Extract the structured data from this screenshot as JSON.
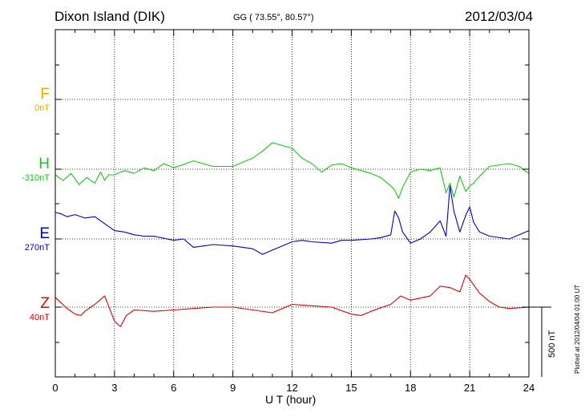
{
  "header": {
    "station": "Dixon Island (DIK)",
    "coords": "GG ( 73.55°,  80.57°)",
    "date": "2012/03/04"
  },
  "footer": {
    "plotted": "Plotted at 2012/04/04 01:00 UT",
    "scale_label": "500 nT"
  },
  "components": [
    {
      "letter": "F",
      "base": "0nT",
      "color": "#f5a800"
    },
    {
      "letter": "H",
      "base": "-310nT",
      "color": "#18c818"
    },
    {
      "letter": "E",
      "base": "270nT",
      "color": "#0000cc"
    },
    {
      "letter": "Z",
      "base": "40nT",
      "color": "#dd0000"
    }
  ],
  "chart_data": {
    "type": "line",
    "xlabel": "U T (hour)",
    "xlim": [
      0,
      24
    ],
    "xticks": [
      "0",
      "3",
      "6",
      "9",
      "12",
      "15",
      "18",
      "21",
      "24"
    ],
    "scale_bar_nT": 500,
    "series": [
      {
        "name": "H",
        "color": "#18c818",
        "baseline_nT": -310,
        "points": [
          [
            0,
            -40
          ],
          [
            0.4,
            -80
          ],
          [
            0.8,
            -30
          ],
          [
            1.2,
            -110
          ],
          [
            1.6,
            -60
          ],
          [
            2,
            -100
          ],
          [
            2.3,
            -20
          ],
          [
            2.5,
            -80
          ],
          [
            2.7,
            -40
          ],
          [
            3,
            -40
          ],
          [
            3.5,
            -10
          ],
          [
            4,
            -30
          ],
          [
            4.5,
            10
          ],
          [
            5,
            -10
          ],
          [
            5.5,
            40
          ],
          [
            6,
            10
          ],
          [
            7,
            60
          ],
          [
            8,
            20
          ],
          [
            9,
            20
          ],
          [
            9.5,
            50
          ],
          [
            10,
            80
          ],
          [
            10.5,
            130
          ],
          [
            11,
            190
          ],
          [
            11.5,
            170
          ],
          [
            12,
            150
          ],
          [
            12.5,
            80
          ],
          [
            13,
            40
          ],
          [
            13.5,
            -20
          ],
          [
            14,
            30
          ],
          [
            14.5,
            40
          ],
          [
            15,
            10
          ],
          [
            15.5,
            -10
          ],
          [
            16,
            -30
          ],
          [
            16.5,
            -60
          ],
          [
            17,
            -120
          ],
          [
            17.2,
            -150
          ],
          [
            17.4,
            -210
          ],
          [
            17.6,
            -130
          ],
          [
            18,
            -20
          ],
          [
            18.5,
            0
          ],
          [
            19,
            -10
          ],
          [
            19.5,
            10
          ],
          [
            19.8,
            -170
          ],
          [
            20,
            -100
          ],
          [
            20.2,
            -200
          ],
          [
            20.5,
            -50
          ],
          [
            20.8,
            -160
          ],
          [
            21,
            -120
          ],
          [
            21.2,
            -100
          ],
          [
            21.5,
            -50
          ],
          [
            22,
            20
          ],
          [
            23,
            40
          ],
          [
            23.5,
            20
          ],
          [
            24,
            -30
          ]
        ]
      },
      {
        "name": "E",
        "color": "#0000cc",
        "baseline_nT": 270,
        "points": [
          [
            0,
            190
          ],
          [
            0.3,
            180
          ],
          [
            0.6,
            160
          ],
          [
            1,
            175
          ],
          [
            1.5,
            150
          ],
          [
            2,
            160
          ],
          [
            2.5,
            110
          ],
          [
            3,
            60
          ],
          [
            3.5,
            50
          ],
          [
            4,
            30
          ],
          [
            4.5,
            20
          ],
          [
            5,
            20
          ],
          [
            6,
            -10
          ],
          [
            6.5,
            0
          ],
          [
            7,
            -60
          ],
          [
            8,
            -40
          ],
          [
            9,
            -50
          ],
          [
            10,
            -70
          ],
          [
            10.5,
            -110
          ],
          [
            11,
            -80
          ],
          [
            12,
            -20
          ],
          [
            12.5,
            -10
          ],
          [
            13,
            -20
          ],
          [
            14,
            -30
          ],
          [
            14.5,
            -10
          ],
          [
            15,
            -10
          ],
          [
            16,
            0
          ],
          [
            16.5,
            10
          ],
          [
            17,
            30
          ],
          [
            17.2,
            200
          ],
          [
            17.4,
            150
          ],
          [
            17.6,
            50
          ],
          [
            18,
            -30
          ],
          [
            18.5,
            0
          ],
          [
            19,
            50
          ],
          [
            19.5,
            130
          ],
          [
            19.8,
            20
          ],
          [
            20,
            380
          ],
          [
            20.2,
            200
          ],
          [
            20.5,
            50
          ],
          [
            20.8,
            170
          ],
          [
            21,
            230
          ],
          [
            21.2,
            120
          ],
          [
            21.5,
            50
          ],
          [
            22,
            20
          ],
          [
            23,
            0
          ],
          [
            24,
            60
          ]
        ]
      },
      {
        "name": "Z",
        "color": "#dd0000",
        "baseline_nT": 40,
        "points": [
          [
            0,
            70
          ],
          [
            0.3,
            30
          ],
          [
            0.6,
            -10
          ],
          [
            1,
            -50
          ],
          [
            1.3,
            -60
          ],
          [
            1.5,
            -30
          ],
          [
            2,
            20
          ],
          [
            2.5,
            80
          ],
          [
            3,
            -100
          ],
          [
            3.3,
            -140
          ],
          [
            3.6,
            -60
          ],
          [
            4,
            -20
          ],
          [
            5,
            -30
          ],
          [
            6,
            -20
          ],
          [
            7,
            -10
          ],
          [
            8,
            0
          ],
          [
            9,
            0
          ],
          [
            10,
            -20
          ],
          [
            11,
            -40
          ],
          [
            12,
            20
          ],
          [
            13,
            10
          ],
          [
            14,
            0
          ],
          [
            15,
            -50
          ],
          [
            15.5,
            -60
          ],
          [
            16,
            -30
          ],
          [
            17,
            20
          ],
          [
            17.5,
            80
          ],
          [
            18,
            50
          ],
          [
            19,
            80
          ],
          [
            19.5,
            150
          ],
          [
            20,
            140
          ],
          [
            20.5,
            110
          ],
          [
            20.8,
            230
          ],
          [
            21,
            200
          ],
          [
            21.5,
            100
          ],
          [
            22,
            40
          ],
          [
            22.5,
            0
          ],
          [
            23,
            -10
          ],
          [
            24,
            0
          ]
        ]
      }
    ]
  }
}
